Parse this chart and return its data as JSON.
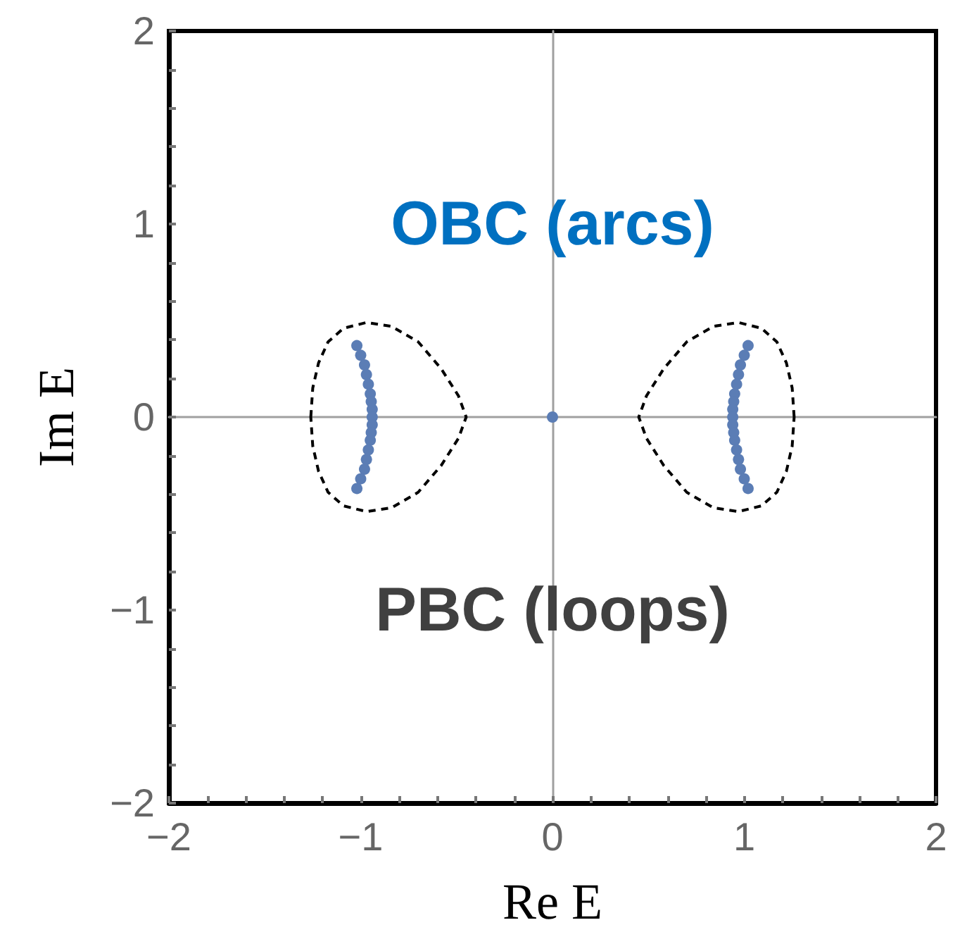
{
  "chart_data": {
    "type": "scatter",
    "xlabel": "Re E",
    "ylabel": "Im E",
    "annotations": [
      "OBC (arcs)",
      "PBC (loops)"
    ],
    "xlim": [
      -2,
      2
    ],
    "ylim": [
      -2,
      2
    ],
    "xticks": [
      -2,
      {
        "value": -1.8,
        "label": null
      },
      {
        "value": -1.6,
        "label": null
      },
      {
        "value": -1.4,
        "label": null
      },
      {
        "value": -1.2,
        "label": null
      },
      -1,
      {
        "value": -0.8,
        "label": null
      },
      {
        "value": -0.6,
        "label": null
      },
      {
        "value": -0.4,
        "label": null
      },
      {
        "value": -0.2,
        "label": null
      },
      0,
      {
        "value": 0.2,
        "label": null
      },
      {
        "value": 0.4,
        "label": null
      },
      {
        "value": 0.6,
        "label": null
      },
      {
        "value": 0.8,
        "label": null
      },
      1,
      {
        "value": 1.2,
        "label": null
      },
      {
        "value": 1.4,
        "label": null
      },
      {
        "value": 1.6,
        "label": null
      },
      {
        "value": 1.8,
        "label": null
      },
      2
    ],
    "yticks": [
      -2,
      {
        "value": -1.8,
        "label": null
      },
      {
        "value": -1.6,
        "label": null
      },
      {
        "value": -1.4,
        "label": null
      },
      {
        "value": -1.2,
        "label": null
      },
      -1,
      {
        "value": -0.8,
        "label": null
      },
      {
        "value": -0.6,
        "label": null
      },
      {
        "value": -0.4,
        "label": null
      },
      {
        "value": -0.2,
        "label": null
      },
      0,
      {
        "value": 0.2,
        "label": null
      },
      {
        "value": 0.4,
        "label": null
      },
      {
        "value": 0.6,
        "label": null
      },
      {
        "value": 0.8,
        "label": null
      },
      1,
      {
        "value": 1.2,
        "label": null
      },
      {
        "value": 1.4,
        "label": null
      },
      {
        "value": 1.6,
        "label": null
      },
      {
        "value": 1.8,
        "label": null
      },
      2
    ],
    "marker": "circle",
    "series": [
      {
        "color": "#5b7db5",
        "x": [
          -1.02,
          -1.0,
          -0.98,
          -0.97,
          -0.96,
          -0.95,
          -0.945,
          -0.94,
          -0.94,
          -0.94,
          -0.945,
          -0.95,
          -0.96,
          -0.97,
          -0.98,
          -1.0,
          -1.02,
          0,
          1.02,
          1.0,
          0.98,
          0.97,
          0.96,
          0.95,
          0.945,
          0.94,
          0.94,
          0.94,
          0.945,
          0.95,
          0.96,
          0.97,
          0.98,
          1.0,
          1.02
        ],
        "values": [
          0.37,
          0.32,
          0.27,
          0.22,
          0.17,
          0.12,
          0.08,
          0.04,
          0,
          -0.04,
          -0.08,
          -0.12,
          -0.17,
          -0.22,
          -0.27,
          -0.32,
          -0.37,
          0,
          0.37,
          0.32,
          0.27,
          0.22,
          0.17,
          0.12,
          0.08,
          0.04,
          0,
          -0.04,
          -0.08,
          -0.12,
          -0.17,
          -0.22,
          -0.27,
          -0.32,
          -0.37
        ]
      }
    ]
  }
}
